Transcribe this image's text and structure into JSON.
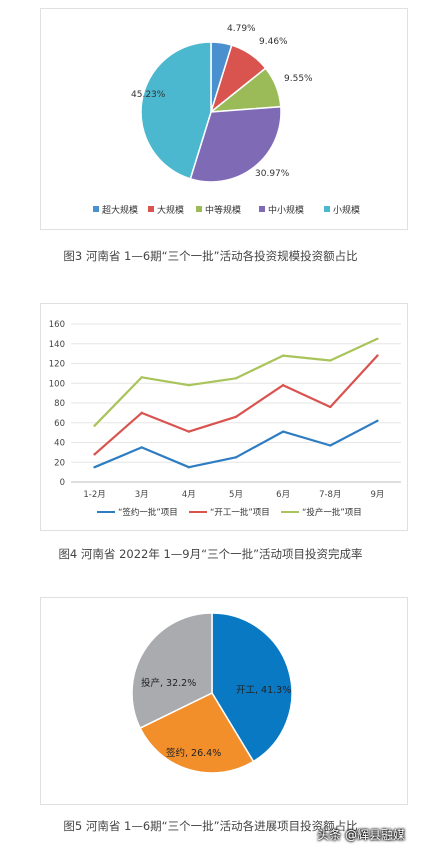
{
  "captions": {
    "fig3": "图3  河南省 1—6期“三个一批”活动各投资规模投资额占比",
    "fig4": "图4  河南省 2022年 1—9月“三个一批”活动项目投资完成率",
    "fig5": "图5  河南省 1—6期“三个一批”活动各进展项目投资额占比"
  },
  "watermark": "头条 @辉县融媒",
  "chart_data": [
    {
      "type": "pie",
      "categories": [
        "超大规模",
        "大规模",
        "中等规模",
        "中小规模",
        "小规模"
      ],
      "values": [
        4.79,
        9.46,
        9.55,
        30.97,
        45.23
      ],
      "data_labels": [
        "4.79%",
        "9.46%",
        "9.55%",
        "30.97%",
        "45.23%"
      ],
      "colors": [
        "#4a8fce",
        "#d9534f",
        "#9bbb59",
        "#7f6bb5",
        "#4bb8cf"
      ],
      "legend": "bottom"
    },
    {
      "type": "line",
      "categories": [
        "1-2月",
        "3月",
        "4月",
        "5月",
        "6月",
        "7-8月",
        "9月"
      ],
      "series": [
        {
          "name": "“签约一批”项目",
          "values": [
            15,
            35,
            15,
            25,
            51,
            37,
            62
          ],
          "color": "#2e7dc2"
        },
        {
          "name": "“开工一批”项目",
          "values": [
            28,
            70,
            51,
            66,
            98,
            76,
            128
          ],
          "color": "#d9534f"
        },
        {
          "name": "“投产一批”项目",
          "values": [
            57,
            106,
            98,
            105,
            128,
            123,
            145
          ],
          "color": "#a9c45a"
        }
      ],
      "yticks": [
        "0",
        "20",
        "40",
        "60",
        "80",
        "100",
        "120",
        "140",
        "160"
      ],
      "ylim": [
        0,
        160
      ],
      "grid": true,
      "legend": "bottom"
    },
    {
      "type": "pie",
      "categories": [
        "开工",
        "签约",
        "投产"
      ],
      "values": [
        41.3,
        26.4,
        32.2
      ],
      "data_labels": [
        "开工, 41.3%",
        "签约, 26.4%",
        "投产, 32.2%"
      ],
      "colors": [
        "#0a79c4",
        "#f28f2b",
        "#a9abae"
      ]
    }
  ]
}
